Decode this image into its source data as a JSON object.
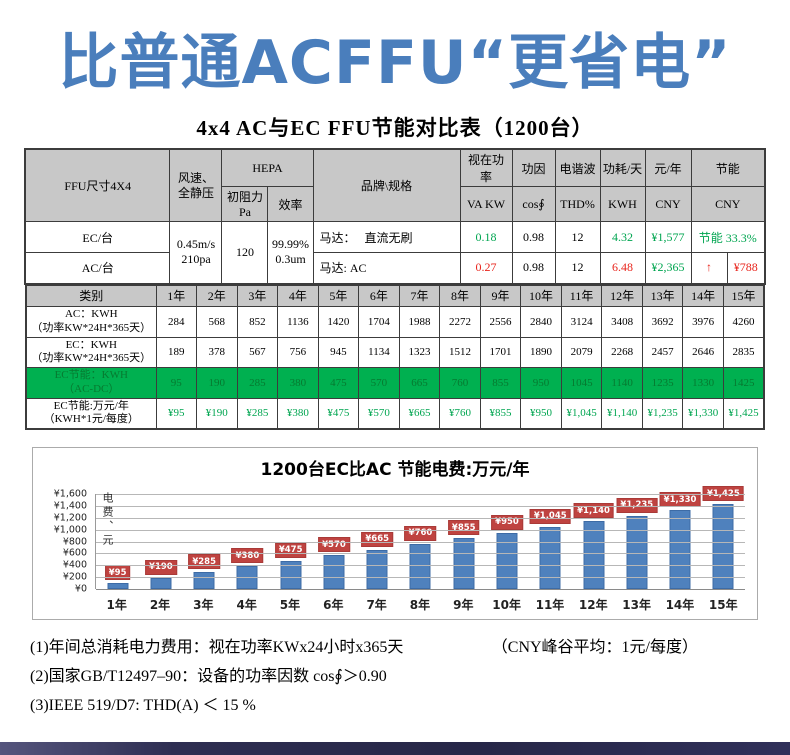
{
  "page": {
    "headline": "比普通ACFFU“更省电”",
    "headline_color": "#4a7ebc"
  },
  "table": {
    "caption": "4x4 AC与EC FFU节能对比表（1200台）",
    "header": {
      "ffu_size": "FFU尺寸4X4",
      "wind_pressure": "风速、全静压",
      "hepa": "HEPA",
      "hepa_resistance": "初阻力Pa",
      "hepa_efficiency": "效率",
      "brand_spec": "品牌\\规格",
      "apparent_power": "视在功率",
      "apparent_power_unit": "VA KW",
      "power_factor": "功因",
      "power_factor_unit": "cos∮",
      "harmonic": "电谐波",
      "harmonic_unit": "THD%",
      "consumption_day": "功耗/天",
      "consumption_day_unit": "KWH",
      "yuan_year": "元/年",
      "yuan_year_unit": "CNY",
      "saving": "节能",
      "saving_unit": "CNY"
    },
    "ec_row": {
      "label": "EC/台",
      "wind_line1": "0.45m/s",
      "wind_line2": "210pa",
      "resistance": "120",
      "efficiency_line1": "99.99%",
      "efficiency_line2": "0.3um",
      "motor": "马达：　 直流无刷",
      "va": "0.18",
      "cos": "0.98",
      "thd": "12",
      "kwh": "4.32",
      "cny": "¥1,577",
      "saving": "节能 33.3%"
    },
    "ac_row": {
      "label": "AC/台",
      "motor": "马达: AC",
      "va": "0.27",
      "cos": "0.98",
      "thd": "12",
      "kwh": "6.48",
      "cny": "¥2,365",
      "arrow": "↑",
      "saving": "¥788"
    },
    "year_section": {
      "category_label": "类别",
      "years": [
        "1年",
        "2年",
        "3年",
        "4年",
        "5年",
        "6年",
        "7年",
        "8年",
        "9年",
        "10年",
        "11年",
        "12年",
        "13年",
        "14年",
        "15年"
      ],
      "rows": [
        {
          "label_line1": "AC：KWH",
          "label_line2": "（功率KW*24H*365天）",
          "style": "r-ac",
          "values": [
            "284",
            "568",
            "852",
            "1136",
            "1420",
            "1704",
            "1988",
            "2272",
            "2556",
            "2840",
            "3124",
            "3408",
            "3692",
            "3976",
            "4260"
          ]
        },
        {
          "label_line1": "EC：KWH",
          "label_line2": "（功率KW*24H*365天）",
          "style": "r-ec",
          "values": [
            "189",
            "378",
            "567",
            "756",
            "945",
            "1134",
            "1323",
            "1512",
            "1701",
            "1890",
            "2079",
            "2268",
            "2457",
            "2646",
            "2835"
          ]
        },
        {
          "label_line1": "EC节能：KWH",
          "label_line2": "（AC-DC）",
          "style": "r-ec-save",
          "values": [
            "95",
            "190",
            "285",
            "380",
            "475",
            "570",
            "665",
            "760",
            "855",
            "950",
            "1045",
            "1140",
            "1235",
            "1330",
            "1425"
          ]
        },
        {
          "label_line1": "EC节能:万元/年",
          "label_line2": "（KWH*1元/每度）",
          "style": "r-ec-money",
          "values": [
            "¥95",
            "¥190",
            "¥285",
            "¥380",
            "¥475",
            "¥570",
            "¥665",
            "¥760",
            "¥855",
            "¥950",
            "¥1,045",
            "¥1,140",
            "¥1,235",
            "¥1,330",
            "¥1,425"
          ]
        }
      ]
    }
  },
  "chart_data": {
    "type": "bar",
    "title": "1200台EC比AC 节能电费:万元/年",
    "categories": [
      "1年",
      "2年",
      "3年",
      "4年",
      "5年",
      "6年",
      "7年",
      "8年",
      "9年",
      "10年",
      "11年",
      "12年",
      "13年",
      "14年",
      "15年"
    ],
    "values": [
      95,
      190,
      285,
      380,
      475,
      570,
      665,
      760,
      855,
      950,
      1045,
      1140,
      1235,
      1330,
      1425
    ],
    "data_labels": [
      "¥95",
      "¥190",
      "¥285",
      "¥380",
      "¥475",
      "¥570",
      "¥665",
      "¥760",
      "¥855",
      "¥950",
      "¥1,045",
      "¥1,140",
      "¥1,235",
      "¥1,330",
      "¥1,425"
    ],
    "ylabel": "电费、元",
    "xlabel": "",
    "ylim": [
      0,
      1600
    ],
    "ytick_labels": [
      "¥1,600",
      "¥1,400",
      "¥1,200",
      "¥1,000",
      "¥800",
      "¥600",
      "¥400",
      "¥200",
      "¥0"
    ],
    "grid": true,
    "legend": false,
    "bar_color": "#4f81bd",
    "label_bg_color": "#bf4340"
  },
  "notes": {
    "line1": "(1)年间总消耗电力费用：视在功率KWx24小时x365天",
    "line1_right": "（CNY峰谷平均：1元/每度）",
    "line2": "(2)国家GB/T12497–90：设备的功率因数 cos∮＞0.90",
    "line3": "(3)IEEE 519/D7: THD(A) ＜ 15 %"
  }
}
